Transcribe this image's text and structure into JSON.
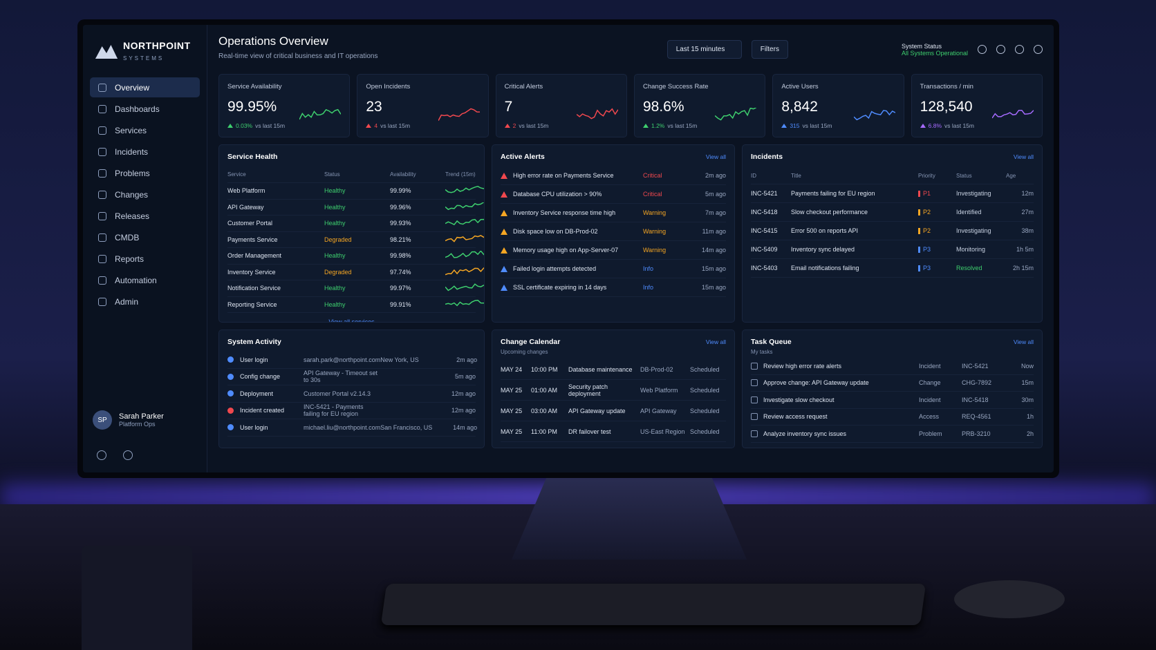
{
  "brand": {
    "name": "NORTHPOINT",
    "tagline": "SYSTEMS"
  },
  "nav": [
    "Overview",
    "Dashboards",
    "Services",
    "Incidents",
    "Problems",
    "Changes",
    "Releases",
    "CMDB",
    "Reports",
    "Automation",
    "Admin"
  ],
  "active_nav": 0,
  "user": {
    "initials": "SP",
    "name": "Sarah Parker",
    "role": "Platform Ops"
  },
  "header": {
    "title": "Operations Overview",
    "subtitle": "Real-time view of critical business and IT operations",
    "time_range": "Last 15 minutes",
    "filters": "Filters",
    "system_status_label": "System Status",
    "system_status": "All Systems Operational"
  },
  "kpis": [
    {
      "label": "Service Availability",
      "value": "99.95%",
      "delta": "0.03%",
      "delta_text": "vs last 15m",
      "color": "#3ecf6e"
    },
    {
      "label": "Open Incidents",
      "value": "23",
      "delta": "4",
      "delta_text": "vs last 15m",
      "color": "#f0484e"
    },
    {
      "label": "Critical Alerts",
      "value": "7",
      "delta": "2",
      "delta_text": "vs last 15m",
      "color": "#f0484e"
    },
    {
      "label": "Change Success Rate",
      "value": "98.6%",
      "delta": "1.2%",
      "delta_text": "vs last 15m",
      "color": "#3ecf6e"
    },
    {
      "label": "Active Users",
      "value": "8,842",
      "delta": "315",
      "delta_text": "vs last 15m",
      "color": "#4f8cff"
    },
    {
      "label": "Transactions / min",
      "value": "128,540",
      "delta": "6.8%",
      "delta_text": "vs last 15m",
      "color": "#a66bff"
    }
  ],
  "service_health": {
    "title": "Service Health",
    "columns": [
      "Service",
      "Status",
      "Availability",
      "Trend (15m)"
    ],
    "rows": [
      {
        "service": "Web Platform",
        "status": "Healthy",
        "availability": "99.99%",
        "color": "#3ecf6e"
      },
      {
        "service": "API Gateway",
        "status": "Healthy",
        "availability": "99.96%",
        "color": "#3ecf6e"
      },
      {
        "service": "Customer Portal",
        "status": "Healthy",
        "availability": "99.93%",
        "color": "#3ecf6e"
      },
      {
        "service": "Payments Service",
        "status": "Degraded",
        "availability": "98.21%",
        "color": "#f5a623"
      },
      {
        "service": "Order Management",
        "status": "Healthy",
        "availability": "99.98%",
        "color": "#3ecf6e"
      },
      {
        "service": "Inventory Service",
        "status": "Degraded",
        "availability": "97.74%",
        "color": "#f5a623"
      },
      {
        "service": "Notification Service",
        "status": "Healthy",
        "availability": "99.97%",
        "color": "#3ecf6e"
      },
      {
        "service": "Reporting Service",
        "status": "Healthy",
        "availability": "99.91%",
        "color": "#3ecf6e"
      }
    ],
    "link": "View all services"
  },
  "active_alerts": {
    "title": "Active Alerts",
    "view_all": "View all",
    "rows": [
      {
        "text": "High error rate on Payments Service",
        "severity": "Critical",
        "age": "2m ago",
        "color": "#f0484e"
      },
      {
        "text": "Database CPU utilization > 90%",
        "severity": "Critical",
        "age": "5m ago",
        "color": "#f0484e"
      },
      {
        "text": "Inventory Service response time high",
        "severity": "Warning",
        "age": "7m ago",
        "color": "#f5a623"
      },
      {
        "text": "Disk space low on DB-Prod-02",
        "severity": "Warning",
        "age": "11m ago",
        "color": "#f5a623"
      },
      {
        "text": "Memory usage high on App-Server-07",
        "severity": "Warning",
        "age": "14m ago",
        "color": "#f5a623"
      },
      {
        "text": "Failed login attempts detected",
        "severity": "Info",
        "age": "15m ago",
        "color": "#4f8cff"
      },
      {
        "text": "SSL certificate expiring in 14 days",
        "severity": "Info",
        "age": "15m ago",
        "color": "#4f8cff"
      }
    ]
  },
  "incidents": {
    "title": "Incidents",
    "view_all": "View all",
    "columns": [
      "ID",
      "Title",
      "Priority",
      "Status",
      "Age"
    ],
    "rows": [
      {
        "id": "INC-5421",
        "title": "Payments failing for EU region",
        "priority": "P1",
        "priority_color": "#f0484e",
        "status": "Investigating",
        "status_color": "#c9d3e3",
        "age": "12m"
      },
      {
        "id": "INC-5418",
        "title": "Slow checkout performance",
        "priority": "P2",
        "priority_color": "#f5a623",
        "status": "Identified",
        "status_color": "#c9d3e3",
        "age": "27m"
      },
      {
        "id": "INC-5415",
        "title": "Error 500 on reports API",
        "priority": "P2",
        "priority_color": "#f5a623",
        "status": "Investigating",
        "status_color": "#c9d3e3",
        "age": "38m"
      },
      {
        "id": "INC-5409",
        "title": "Inventory sync delayed",
        "priority": "P3",
        "priority_color": "#4f8cff",
        "status": "Monitoring",
        "status_color": "#c9d3e3",
        "age": "1h 5m"
      },
      {
        "id": "INC-5403",
        "title": "Email notifications failing",
        "priority": "P3",
        "priority_color": "#4f8cff",
        "status": "Resolved",
        "status_color": "#3ecf6e",
        "age": "2h 15m"
      }
    ]
  },
  "system_activity": {
    "title": "System Activity",
    "rows": [
      {
        "event": "User login",
        "detail": "sarah.park@northpoint.com",
        "location": "New York, US",
        "age": "2m ago",
        "color": "#4f8cff"
      },
      {
        "event": "Config change",
        "detail": "API Gateway - Timeout set to 30s",
        "age": "5m ago",
        "color": "#4f8cff"
      },
      {
        "event": "Deployment",
        "detail": "Customer Portal v2.14.3",
        "age": "12m ago",
        "color": "#4f8cff"
      },
      {
        "event": "Incident created",
        "detail": "INC-5421 - Payments failing for EU region",
        "age": "12m ago",
        "color": "#f0484e"
      },
      {
        "event": "User login",
        "detail": "michael.liu@northpoint.com",
        "location": "San Francisco, US",
        "age": "14m ago",
        "color": "#4f8cff"
      }
    ]
  },
  "change_calendar": {
    "title": "Change Calendar",
    "subtitle": "Upcoming changes",
    "view_all": "View all",
    "rows": [
      {
        "date": "MAY 24",
        "time": "10:00 PM",
        "title": "Database maintenance",
        "target": "DB-Prod-02",
        "status": "Scheduled"
      },
      {
        "date": "MAY 25",
        "time": "01:00 AM",
        "title": "Security patch deployment",
        "target": "Web Platform",
        "status": "Scheduled"
      },
      {
        "date": "MAY 25",
        "time": "03:00 AM",
        "title": "API Gateway update",
        "target": "API Gateway",
        "status": "Scheduled"
      },
      {
        "date": "MAY 25",
        "time": "11:00 PM",
        "title": "DR failover test",
        "target": "US-East Region",
        "status": "Scheduled"
      }
    ]
  },
  "task_queue": {
    "title": "Task Queue",
    "subtitle": "My tasks",
    "view_all": "View all",
    "rows": [
      {
        "task": "Review high error rate alerts",
        "type": "Incident",
        "ref": "INC-5421",
        "due": "Now"
      },
      {
        "task": "Approve change: API Gateway update",
        "type": "Change",
        "ref": "CHG-7892",
        "due": "15m"
      },
      {
        "task": "Investigate slow checkout",
        "type": "Incident",
        "ref": "INC-5418",
        "due": "30m"
      },
      {
        "task": "Review access request",
        "type": "Access",
        "ref": "REQ-4561",
        "due": "1h"
      },
      {
        "task": "Analyze inventory sync issues",
        "type": "Problem",
        "ref": "PRB-3210",
        "due": "2h"
      }
    ]
  }
}
